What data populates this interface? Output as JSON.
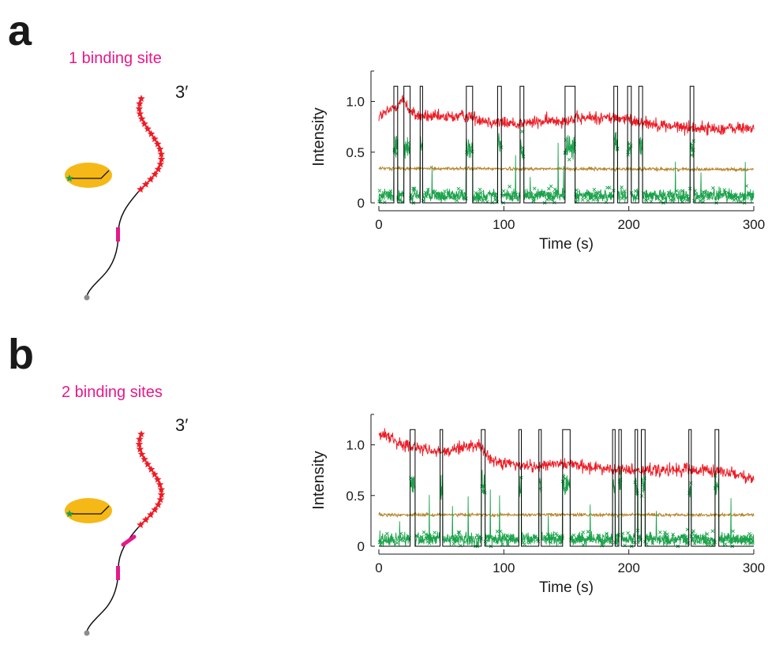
{
  "colors": {
    "accent_magenta": "#e6198a",
    "red_trace": "#ee1c25",
    "green_trace": "#1aa24a",
    "gold_trace": "#b5842a",
    "fit_trace": "#000000",
    "bead": "#f6b816",
    "star": "#ee1c25"
  },
  "panels": [
    {
      "letter": "a",
      "site_label": "1 binding site",
      "prime_label": "3′"
    },
    {
      "letter": "b",
      "site_label": "2 binding sites",
      "prime_label": "3′"
    }
  ],
  "chart_data": [
    {
      "type": "line",
      "xlabel": "Time (s)",
      "ylabel": "Intensity",
      "xlim": [
        0,
        300
      ],
      "ylim": [
        0,
        1.3
      ],
      "xticks": [
        "0",
        "100",
        "200",
        "300"
      ],
      "yticks": [
        "0",
        "0.5",
        "1.0"
      ],
      "grid": false,
      "series": [
        {
          "color": "#ee1c25",
          "style": "noisy-line",
          "x": [
            0,
            10,
            20,
            25,
            30,
            50,
            70,
            90,
            110,
            130,
            150,
            170,
            190,
            210,
            230,
            250,
            270,
            300
          ],
          "values": [
            0.85,
            0.92,
            1.02,
            0.9,
            0.86,
            0.84,
            0.86,
            0.8,
            0.78,
            0.8,
            0.82,
            0.84,
            0.84,
            0.8,
            0.76,
            0.74,
            0.73,
            0.74
          ]
        },
        {
          "color": "#b5842a",
          "style": "noisy-line",
          "x": [
            0,
            300
          ],
          "values": [
            0.34,
            0.33
          ]
        },
        {
          "color": "#1aa24a",
          "style": "noisy-markers",
          "baseline": 0.07,
          "events": [
            [
              12,
              15
            ],
            [
              20,
              25
            ],
            [
              33,
              35
            ],
            [
              70,
              75
            ],
            [
              95,
              98
            ],
            [
              113,
              116
            ],
            [
              149,
              157
            ],
            [
              188,
              191
            ],
            [
              199,
              202
            ],
            [
              208,
              211
            ],
            [
              249,
              252
            ]
          ],
          "event_level": 0.55
        },
        {
          "color": "#000000",
          "style": "step",
          "intervals": [
            [
              12,
              15
            ],
            [
              20,
              25
            ],
            [
              33,
              35
            ],
            [
              70,
              75
            ],
            [
              95,
              98
            ],
            [
              113,
              116
            ],
            [
              149,
              157
            ],
            [
              188,
              191
            ],
            [
              199,
              202
            ],
            [
              208,
              211
            ],
            [
              249,
              252
            ]
          ],
          "high": 1.15,
          "low": 0
        }
      ]
    },
    {
      "type": "line",
      "xlabel": "Time (s)",
      "ylabel": "Intensity",
      "xlim": [
        0,
        300
      ],
      "ylim": [
        0,
        1.3
      ],
      "xticks": [
        "0",
        "100",
        "200",
        "300"
      ],
      "yticks": [
        "0",
        "0.5",
        "1.0"
      ],
      "grid": false,
      "series": [
        {
          "color": "#ee1c25",
          "style": "noisy-line",
          "x": [
            0,
            10,
            20,
            30,
            50,
            60,
            70,
            80,
            90,
            110,
            130,
            150,
            170,
            190,
            210,
            230,
            260,
            280,
            300
          ],
          "values": [
            1.1,
            1.08,
            1.0,
            0.97,
            0.92,
            0.95,
            0.98,
            1.0,
            0.85,
            0.8,
            0.78,
            0.82,
            0.78,
            0.75,
            0.75,
            0.74,
            0.76,
            0.73,
            0.65
          ]
        },
        {
          "color": "#b5842a",
          "style": "noisy-line",
          "x": [
            0,
            300
          ],
          "values": [
            0.31,
            0.31
          ]
        },
        {
          "color": "#1aa24a",
          "style": "noisy-markers",
          "baseline": 0.07,
          "events": [
            [
              25,
              29
            ],
            [
              49,
              51
            ],
            [
              82,
              85
            ],
            [
              112,
              114
            ],
            [
              128,
              130
            ],
            [
              147,
              153
            ],
            [
              187,
              189
            ],
            [
              192,
              194
            ],
            [
              205,
              207
            ],
            [
              210,
              213
            ],
            [
              248,
              250
            ],
            [
              269,
              272
            ]
          ],
          "event_level": 0.6
        },
        {
          "color": "#000000",
          "style": "step",
          "intervals": [
            [
              25,
              29
            ],
            [
              49,
              51
            ],
            [
              82,
              85
            ],
            [
              112,
              114
            ],
            [
              128,
              130
            ],
            [
              147,
              153
            ],
            [
              187,
              189
            ],
            [
              192,
              194
            ],
            [
              205,
              207
            ],
            [
              210,
              213
            ],
            [
              248,
              250
            ],
            [
              269,
              272
            ]
          ],
          "high": 1.15,
          "low": 0
        }
      ]
    }
  ]
}
